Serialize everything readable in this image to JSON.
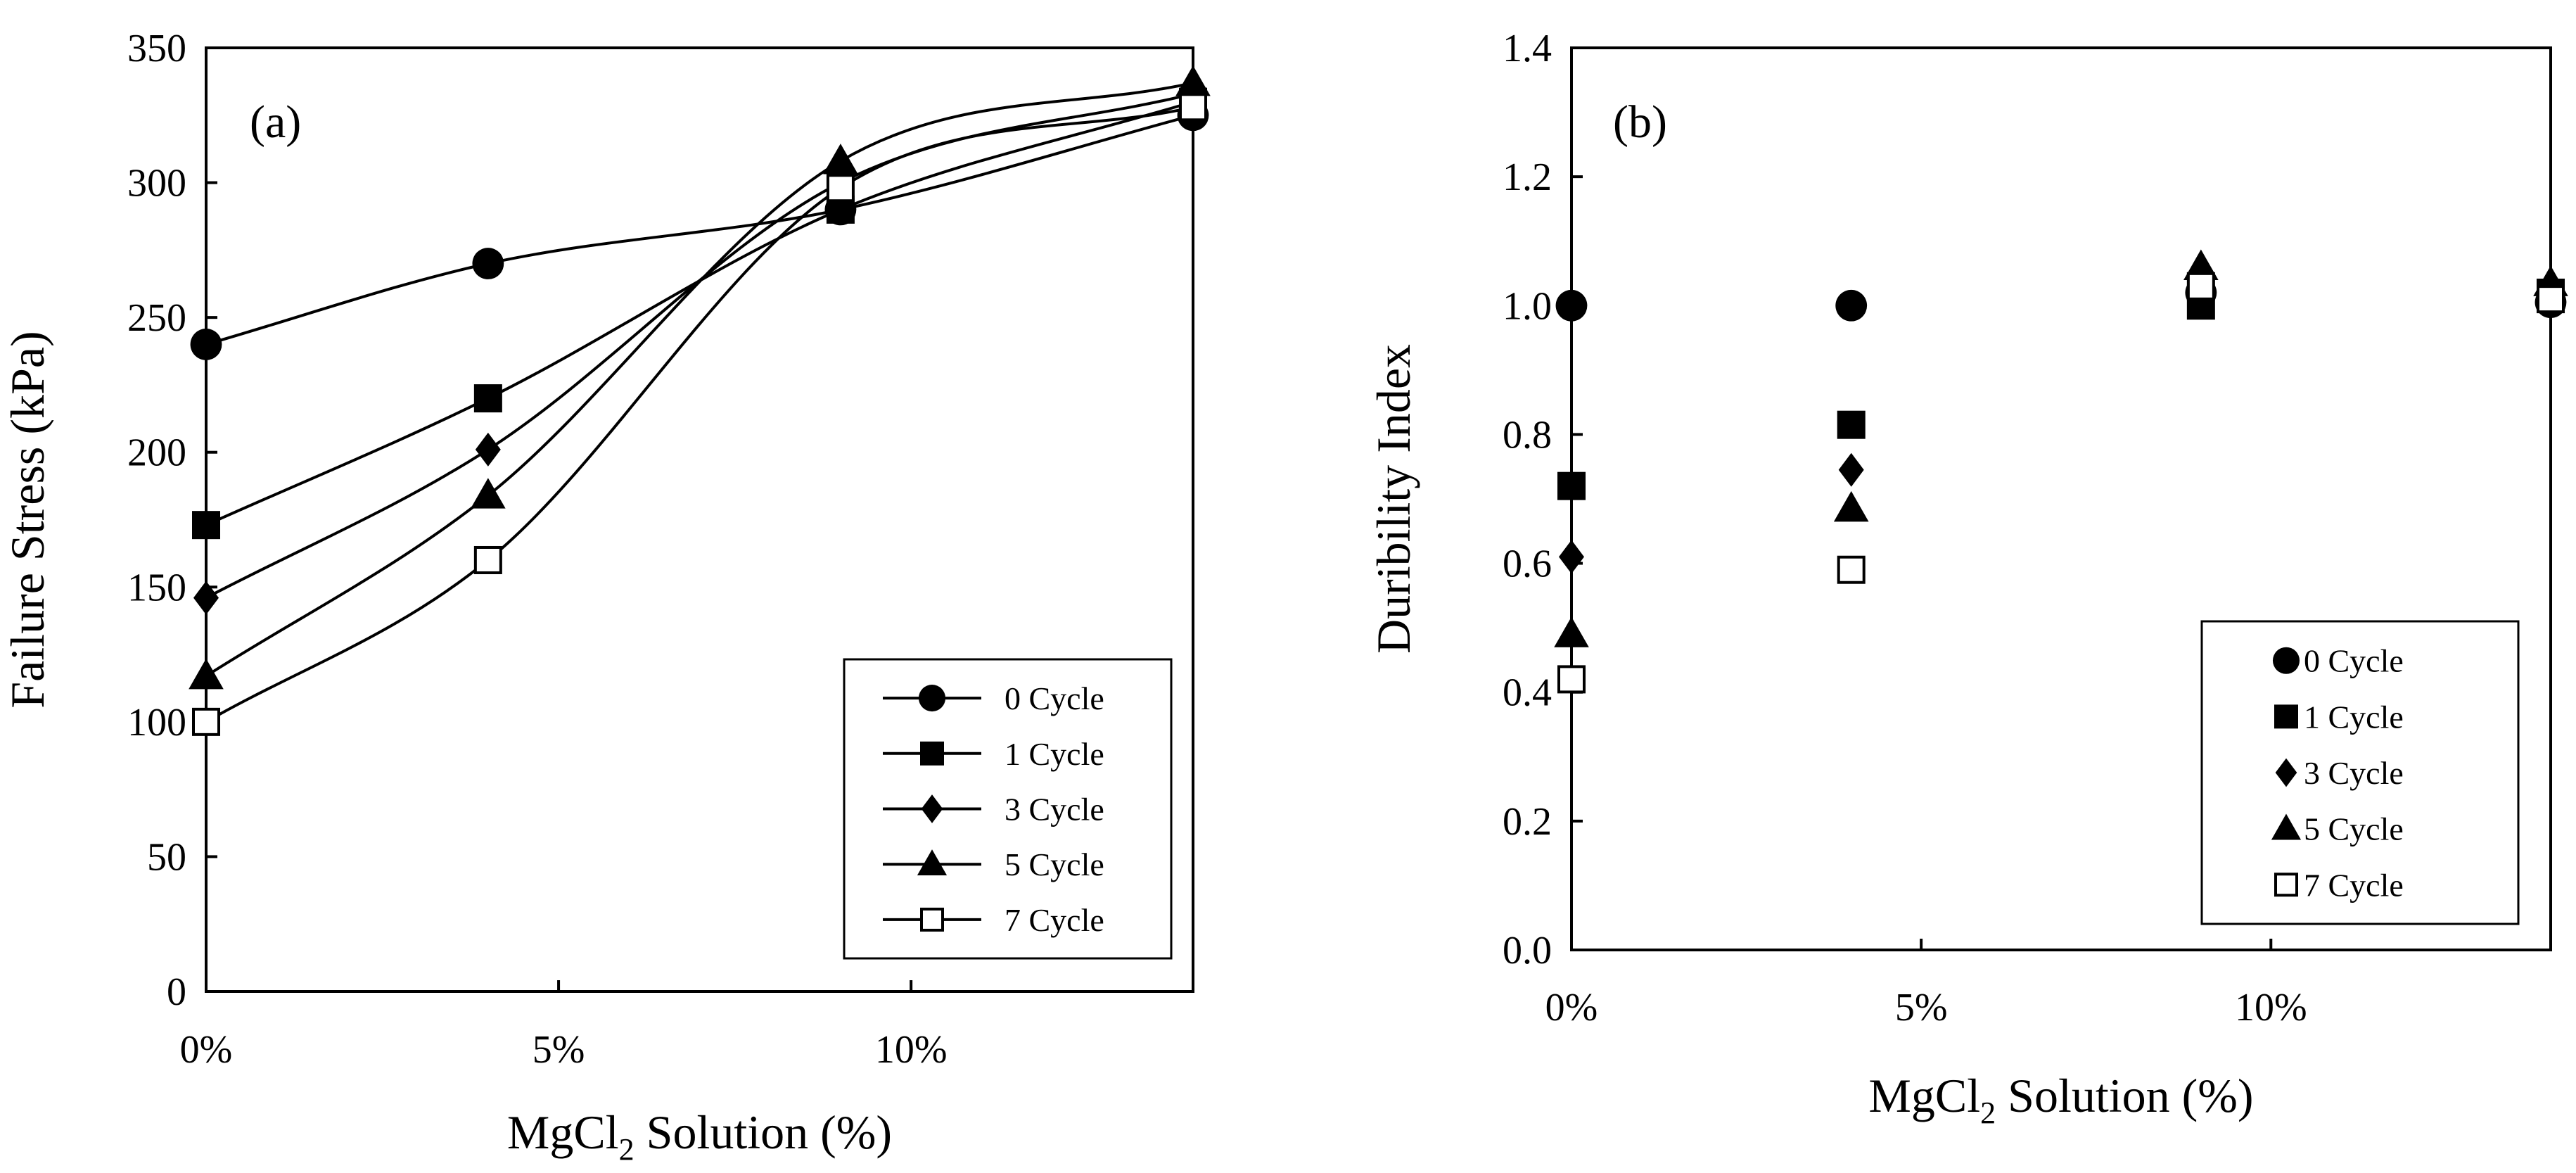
{
  "chart_data": [
    {
      "type": "line",
      "panel_label": "(a)",
      "title": "",
      "xlabel_pre": "MgCl",
      "xlabel_sub": "2",
      "xlabel_post": " Solution (%)",
      "ylabel": "Failure Stress (kPa)",
      "xlim": [
        0,
        14
      ],
      "ylim": [
        0,
        350
      ],
      "x_ticks": [
        0,
        5,
        10
      ],
      "x_tick_labels": [
        "0%",
        "5%",
        "10%"
      ],
      "y_ticks": [
        0,
        50,
        100,
        150,
        200,
        250,
        300,
        350
      ],
      "y_tick_labels": [
        "0",
        "50",
        "100",
        "150",
        "200",
        "250",
        "300",
        "350"
      ],
      "x": [
        0,
        4,
        9,
        14
      ],
      "legend_position": "bottom-right",
      "series": [
        {
          "name": "0 Cycle",
          "marker": "circle",
          "values": [
            240,
            270,
            290,
            325
          ]
        },
        {
          "name": "1 Cycle",
          "marker": "square",
          "values": [
            173,
            220,
            290,
            330
          ]
        },
        {
          "name": "3 Cycle",
          "marker": "diamond",
          "values": [
            146,
            201,
            300,
            333
          ]
        },
        {
          "name": "5 Cycle",
          "marker": "triangle",
          "values": [
            117,
            184,
            308,
            337
          ]
        },
        {
          "name": "7 Cycle",
          "marker": "open-square",
          "values": [
            100,
            160,
            298,
            328
          ]
        }
      ]
    },
    {
      "type": "scatter",
      "panel_label": "(b)",
      "title": "",
      "xlabel_pre": "MgCl",
      "xlabel_sub": "2",
      "xlabel_post": " Solution (%)",
      "ylabel": "Duribility Index",
      "xlim": [
        0,
        14
      ],
      "ylim": [
        0,
        1.4
      ],
      "x_ticks": [
        0,
        5,
        10
      ],
      "x_tick_labels": [
        "0%",
        "5%",
        "10%"
      ],
      "y_ticks": [
        0,
        0.2,
        0.4,
        0.6,
        0.8,
        1.0,
        1.2,
        1.4
      ],
      "y_tick_labels": [
        "0.0",
        "0.2",
        "0.4",
        "0.6",
        "0.8",
        "1.0",
        "1.2",
        "1.4"
      ],
      "x": [
        0,
        4,
        9,
        14
      ],
      "legend_position": "bottom-right",
      "series": [
        {
          "name": "0 Cycle",
          "marker": "circle",
          "values": [
            1.0,
            1.0,
            1.02,
            1.005
          ]
        },
        {
          "name": "1 Cycle",
          "marker": "square",
          "values": [
            0.72,
            0.815,
            1.0,
            1.02
          ]
        },
        {
          "name": "3 Cycle",
          "marker": "diamond",
          "values": [
            0.61,
            0.745,
            1.025,
            1.025
          ]
        },
        {
          "name": "5 Cycle",
          "marker": "triangle",
          "values": [
            0.49,
            0.685,
            1.06,
            1.035
          ]
        },
        {
          "name": "7 Cycle",
          "marker": "open-square",
          "values": [
            0.42,
            0.59,
            1.03,
            1.01
          ]
        }
      ]
    }
  ]
}
